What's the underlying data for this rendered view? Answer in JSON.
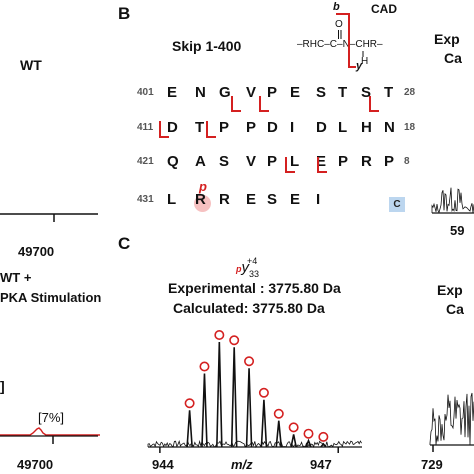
{
  "panel_a": {
    "wt_label": "WT",
    "axis_tick_top": "49700",
    "wt_pka_line1": "WT +",
    "wt_pka_line2": "PKA Stimulation",
    "percent_label": "[7%]",
    "axis_tick_bottom": "49700",
    "bracket_glyph": "]"
  },
  "panel_b": {
    "letter": "B",
    "title": "Skip 1-400",
    "cad_label": "CAD",
    "b_label": "b",
    "y_label": "y",
    "structure_left": "–RHC–C–N–CHR–",
    "carbonyl_o": "O",
    "h_label": "H",
    "phospho_p": "p",
    "cterm_label": "C",
    "rows": [
      {
        "start": "401",
        "end": "28",
        "residues": [
          "E",
          "N",
          "G",
          "V",
          "P",
          "E",
          "S",
          "T",
          "S",
          "T"
        ]
      },
      {
        "start": "411",
        "end": "18",
        "residues": [
          "D",
          "T",
          "P",
          "P",
          "D",
          "I",
          "D",
          "L",
          "H",
          "N"
        ]
      },
      {
        "start": "421",
        "end": "8",
        "residues": [
          "Q",
          "A",
          "S",
          "V",
          "P",
          "L",
          "E",
          "P",
          "R",
          "P"
        ]
      },
      {
        "start": "431",
        "end": "",
        "residues": [
          "L",
          "R",
          "R",
          "E",
          "S",
          "E",
          "I"
        ]
      }
    ]
  },
  "panel_c": {
    "letter": "C",
    "ion_label_prefix": "p",
    "ion_label_main": "y",
    "ion_label_sub": "33",
    "ion_label_sup": "+4",
    "experimental": "Experimental : 3775.80 Da",
    "calculated": "Calculated: 3775.80 Da",
    "x_ticks": [
      "944",
      "947"
    ],
    "x_label": "m/z",
    "chart_data": {
      "type": "line",
      "x": [
        944.5,
        944.75,
        945.0,
        945.25,
        945.5,
        945.75,
        946.0,
        946.25,
        946.5,
        946.75
      ],
      "values": [
        35,
        70,
        100,
        95,
        75,
        45,
        25,
        12,
        6,
        3
      ],
      "xlabel": "m/z",
      "xlim": [
        943.8,
        947.4
      ]
    }
  },
  "panel_right": {
    "top_text1": "Exp",
    "top_text2": "Ca",
    "top_tick": "59",
    "bottom_text1": "Exp",
    "bottom_text2": "Ca",
    "bottom_tick": "729"
  },
  "colors": {
    "red": "#d42020",
    "trace_black": "#111111",
    "cterm_box": "#bcd6ef",
    "phospho_circle": "#f6c1c1"
  }
}
